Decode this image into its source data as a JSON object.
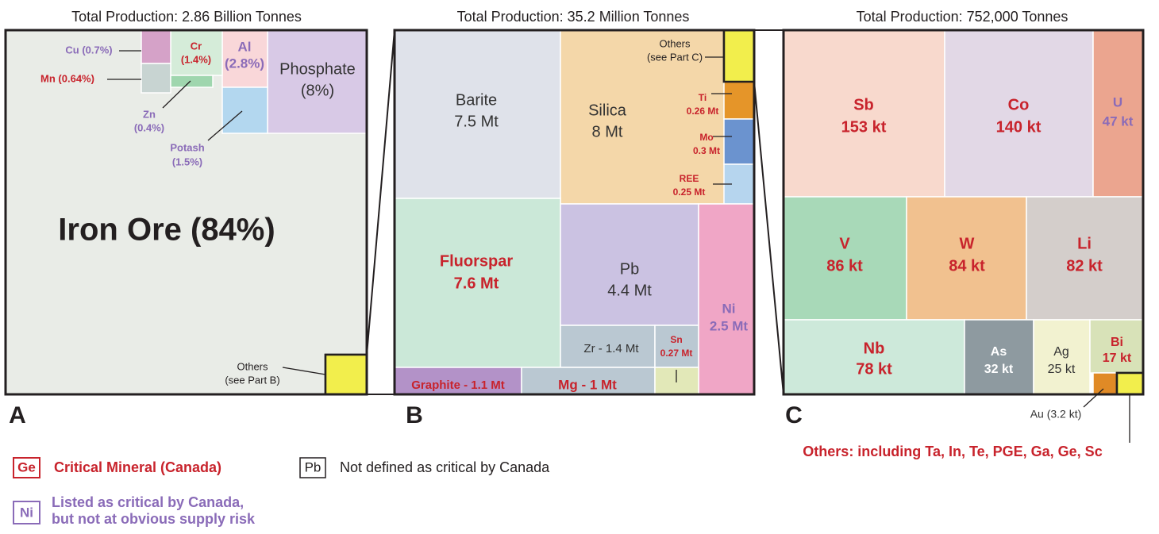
{
  "panels": [
    {
      "title": "Total Production: 2.86 Billion Tonnes",
      "letter": "A",
      "tiles": [
        {
          "lines": [
            "Iron Ore (84%)"
          ]
        },
        {
          "lines": [
            "Phosphate",
            "(8%)"
          ]
        },
        {
          "lines": [
            "Al",
            "(2.8%)"
          ]
        },
        {
          "lines": [
            "Cr",
            "(1.4%)"
          ]
        },
        {
          "lines": [
            "Cu (0.7%)"
          ]
        },
        {
          "lines": [
            "Mn (0.64%)"
          ]
        },
        {
          "lines": [
            "Zn",
            "(0.4%)"
          ]
        },
        {
          "lines": [
            "Potash",
            "(1.5%)"
          ]
        },
        {
          "lines": [
            "Others",
            "(see Part B)"
          ]
        }
      ]
    },
    {
      "title": "Total Production: 35.2 Million Tonnes",
      "letter": "B",
      "tiles": [
        {
          "lines": [
            "Barite",
            "7.5 Mt"
          ]
        },
        {
          "lines": [
            "Silica",
            "8 Mt"
          ]
        },
        {
          "lines": [
            "Others",
            "(see Part C)"
          ]
        },
        {
          "lines": [
            "Ti",
            "0.26 Mt"
          ]
        },
        {
          "lines": [
            "Mo",
            "0.3 Mt"
          ]
        },
        {
          "lines": [
            "REE",
            "0.25 Mt"
          ]
        },
        {
          "lines": [
            "Fluorspar",
            "7.6 Mt"
          ]
        },
        {
          "lines": [
            "Pb",
            "4.4 Mt"
          ]
        },
        {
          "lines": [
            "Zr - 1.4 Mt"
          ]
        },
        {
          "lines": [
            "Sn",
            "0.27 Mt"
          ]
        },
        {
          "lines": [
            "Ni",
            "2.5 Mt"
          ]
        },
        {
          "lines": [
            "Graphite - 1.1 Mt"
          ]
        },
        {
          "lines": [
            "Mg - 1 Mt"
          ]
        }
      ]
    },
    {
      "title": "Total Production: 752,000 Tonnes",
      "letter": "C",
      "tiles": [
        {
          "lines": [
            "Sb",
            "153 kt"
          ]
        },
        {
          "lines": [
            "Co",
            "140 kt"
          ]
        },
        {
          "lines": [
            "U",
            "47 kt"
          ]
        },
        {
          "lines": [
            "V",
            "86 kt"
          ]
        },
        {
          "lines": [
            "W",
            "84 kt"
          ]
        },
        {
          "lines": [
            "Li",
            "82 kt"
          ]
        },
        {
          "lines": [
            "Nb",
            "78 kt"
          ]
        },
        {
          "lines": [
            "As",
            "32 kt"
          ]
        },
        {
          "lines": [
            "Ag",
            "25 kt"
          ]
        },
        {
          "lines": [
            "Bi",
            "17 kt"
          ]
        },
        {
          "lines": [
            "Au (3.2 kt)"
          ]
        },
        {
          "lines": [
            "Others: including Ta, In, Te, PGE, Ga, Ge, Sc"
          ]
        }
      ]
    }
  ],
  "legend": [
    {
      "key": "Ge",
      "lines": [
        "Critical Mineral (Canada)"
      ]
    },
    {
      "key": "Pb",
      "lines": [
        "Not defined as critical by Canada"
      ]
    },
    {
      "key": "Ni",
      "lines": [
        "Listed as critical by Canada,",
        "but not at obvious supply risk"
      ]
    }
  ]
}
